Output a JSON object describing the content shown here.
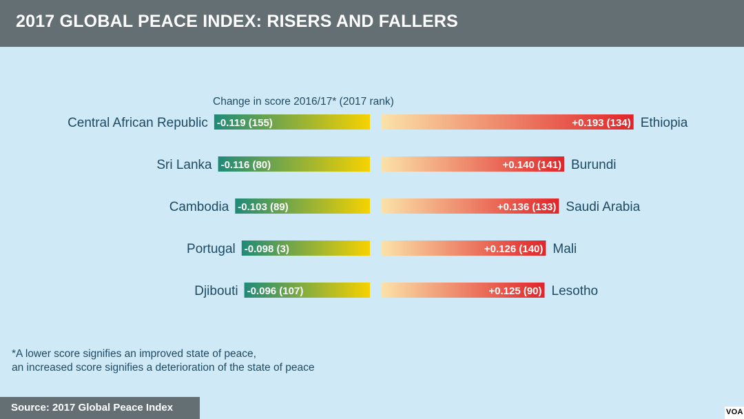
{
  "header": {
    "title": "2017 GLOBAL PEACE INDEX: RISERS AND FALLERS"
  },
  "colors": {
    "header_bg": "#646f74",
    "background": "#cfe9f6",
    "text": "#1d4a63",
    "risers_gradient": [
      "#1f8a78",
      "#f7d200"
    ],
    "fallers_gradient": [
      "#fbe3a8",
      "#e0252a"
    ]
  },
  "chart_data": {
    "type": "bar",
    "title": "2017 GLOBAL PEACE INDEX: RISERS AND FALLERS",
    "subtitle": "Change in score 2016/17* (2017 rank)",
    "series": [
      {
        "name": "",
        "side": "left",
        "items": [
          {
            "country": "Central African Republic",
            "change": -0.119,
            "rank": 155,
            "label": "-0.119 (155)"
          },
          {
            "country": "Sri Lanka",
            "change": -0.116,
            "rank": 80,
            "label": "-0.116 (80)"
          },
          {
            "country": "Cambodia",
            "change": -0.103,
            "rank": 89,
            "label": "-0.103 (89)"
          },
          {
            "country": "Portugal",
            "change": -0.098,
            "rank": 3,
            "label": "-0.098 (3)"
          },
          {
            "country": "Djibouti",
            "change": -0.096,
            "rank": 107,
            "label": "-0.096 (107)"
          }
        ]
      },
      {
        "name": "",
        "side": "right",
        "items": [
          {
            "country": "Ethiopia",
            "change": 0.193,
            "rank": 134,
            "label": "+0.193 (134)"
          },
          {
            "country": "Burundi",
            "change": 0.14,
            "rank": 141,
            "label": "+0.140 (141)"
          },
          {
            "country": "Saudi Arabia",
            "change": 0.136,
            "rank": 133,
            "label": "+0.136 (133)"
          },
          {
            "country": "Mali",
            "change": 0.126,
            "rank": 140,
            "label": "+0.126 (140)"
          },
          {
            "country": "Lesotho",
            "change": 0.125,
            "rank": 90,
            "label": "+0.125 (90)"
          }
        ]
      }
    ]
  },
  "footnote": {
    "line1": "*A lower score signifies  an improved state  of peace,",
    "line2": "an increased score signifies  a deterioration  of the state of peace"
  },
  "source": {
    "text": "Source: 2017 Global Peace Index"
  },
  "logo": {
    "text": "VOA"
  }
}
